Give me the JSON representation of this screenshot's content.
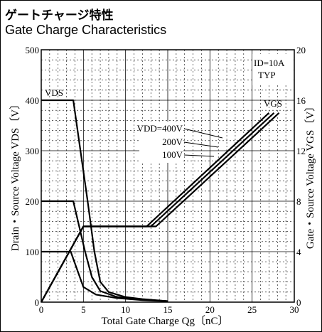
{
  "title_jp": "ゲートチャージ特性",
  "title_en": "Gate Charge Characteristics",
  "chart_data": {
    "type": "line",
    "xlabel": "Total Gate Charge  Qg〔nC〕",
    "ylabel_left": "Drain・Source Voltage VDS〔V〕",
    "ylabel_right": "Gate・Source Voltage VGS〔V〕",
    "xlim": [
      0,
      30
    ],
    "ylim_left": [
      0,
      500
    ],
    "ylim_right": [
      0,
      20
    ],
    "x_ticks": [
      "0",
      "5",
      "10",
      "15",
      "20",
      "25",
      "30"
    ],
    "y_left_ticks": [
      "0",
      "100",
      "200",
      "300",
      "400",
      "500"
    ],
    "y_right_ticks": [
      "0",
      "4",
      "8",
      "12",
      "16",
      "20"
    ],
    "grid": true,
    "conditions": [
      "ID=10A",
      "TYP"
    ],
    "label_vds": "VDS",
    "label_vgs": "VGS",
    "vdd_labels": [
      "VDD=400V",
      "200V",
      "100V"
    ],
    "series": [
      {
        "name": "VDS VDD=400V",
        "axis": "left",
        "x": [
          0,
          3.8,
          5.5,
          6.3,
          7.0,
          8.0,
          10,
          12,
          15
        ],
        "y": [
          400,
          400,
          200,
          100,
          40,
          20,
          10,
          6,
          2
        ]
      },
      {
        "name": "VDS VDD=200V",
        "axis": "left",
        "x": [
          0,
          3.8,
          5.2,
          6.0,
          7.0,
          9,
          12,
          15
        ],
        "y": [
          200,
          200,
          100,
          50,
          22,
          10,
          5,
          2
        ]
      },
      {
        "name": "VDS VDD=100V",
        "axis": "left",
        "x": [
          0,
          3.5,
          5.0,
          6.5,
          9,
          12,
          15
        ],
        "y": [
          100,
          100,
          30,
          15,
          8,
          4,
          2
        ]
      },
      {
        "name": "VGS VDD=400V",
        "axis": "right",
        "x": [
          0,
          5.0,
          12.5,
          27.0
        ],
        "y": [
          0,
          6,
          6,
          15
        ]
      },
      {
        "name": "VGS VDD=200V",
        "axis": "right",
        "x": [
          0,
          5.0,
          13.0,
          27.6
        ],
        "y": [
          0,
          6,
          6,
          15
        ]
      },
      {
        "name": "VGS VDD=100V",
        "axis": "right",
        "x": [
          0,
          5.0,
          13.6,
          28.2
        ],
        "y": [
          0,
          6,
          6,
          15
        ]
      }
    ]
  }
}
